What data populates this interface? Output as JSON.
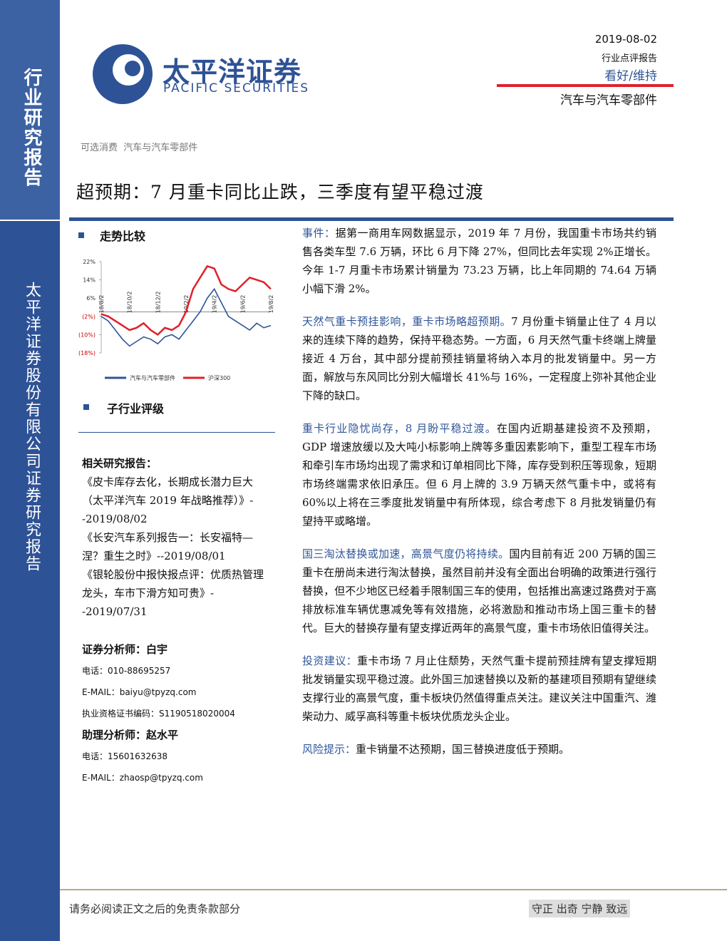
{
  "header": {
    "company": "太平洋证券",
    "company_en": "PACIFIC SECURITIES",
    "date": "2019-08-02",
    "report_type": "行业点评报告",
    "rating": "看好/维持",
    "industry": "汽车与汽车零部件"
  },
  "sidebar": {
    "top": "行业研究报告",
    "bottom": "太平洋证券股份有限公司证券研究报告"
  },
  "breadcrumb": [
    "可选消费",
    "汽车与汽车零部件"
  ],
  "title": "超预期：7 月重卡同比止跌，三季度有望平稳过渡",
  "sections": {
    "trend": "走势比较",
    "sub_rating": "子行业评级"
  },
  "chart": {
    "type": "line",
    "categories": [
      "18/8/2",
      null,
      null,
      null,
      "18/10/2",
      null,
      null,
      null,
      "18/12/2",
      null,
      null,
      null,
      "19/2/2",
      null,
      null,
      null,
      "19/4/2",
      null,
      null,
      null,
      "19/6/2",
      null,
      null,
      null,
      "19/8/2"
    ],
    "series": [
      {
        "name": "汽车与汽车零部件",
        "color": "#2f5597",
        "values": [
          -2,
          -4,
          -8,
          -12,
          -15,
          -13,
          -11,
          -12,
          -14,
          -11,
          -10,
          -12,
          -8,
          -4,
          0,
          6,
          10,
          4,
          -2,
          -4,
          -6,
          -8,
          -5,
          -7,
          -6
        ]
      },
      {
        "name": "沪深300",
        "color": "#e0202a",
        "values": [
          -1,
          -2,
          -4,
          -6,
          -8,
          -7,
          -5,
          -8,
          -10,
          -7,
          -8,
          -6,
          0,
          10,
          15,
          20,
          19,
          12,
          10,
          9,
          12,
          15,
          14,
          13,
          10
        ]
      }
    ],
    "ylim": [
      -18,
      22
    ],
    "yticks": [
      {
        "value": 22,
        "label": "22%"
      },
      {
        "value": 14,
        "label": "14%"
      },
      {
        "value": 6,
        "label": "6%"
      },
      {
        "value": -2,
        "label": "(2%)"
      },
      {
        "value": -10,
        "label": "(10%)"
      },
      {
        "value": -18,
        "label": "(18%)"
      }
    ]
  },
  "related": {
    "heading": "相关研究报告：",
    "items": [
      "《皮卡库存去化，长期成长潜力巨大（太平洋汽车 2019 年战略推荐）》--2019/08/02",
      "《长安汽车系列报告一：长安福特—涅？重生之时》--2019/08/01",
      "《银轮股份中报快报点评：优质热管理龙头，车市下滑方知可贵》--2019/07/31"
    ]
  },
  "analysts": [
    "证券分析师：白宇",
    "电话：010-88695257",
    "E-MAIL：baiyu@tpyzq.com",
    "执业资格证书编码：S1190518020004",
    "助理分析师：赵水平",
    "电话：15601632638",
    "E-MAIL：zhaosp@tpyzq.com"
  ],
  "paragraphs": [
    {
      "lead": "事件：",
      "text": "据第一商用车网数据显示，2019 年 7 月份，我国重卡市场共约销售各类车型 7.6 万辆，环比 6 月下降 27%，但同比去年实现 2%正增长。今年 1-7 月重卡市场累计销量为 73.23 万辆，比上年同期的 74.64 万辆小幅下滑 2%。"
    },
    {
      "lead": "天然气重卡预挂影响，重卡市场略超预期。",
      "text": "7 月份重卡销量止住了 4 月以来的连续下降的趋势，保持平稳态势。一方面，6 月天然气重卡终端上牌量接近 4 万台，其中部分提前预挂销量将纳入本月的批发销量中。另一方面，解放与东风同比分别大幅增长 41%与 16%，一定程度上弥补其他企业下降的缺口。"
    },
    {
      "lead": "重卡行业隐忧尚存，8 月盼平稳过渡。",
      "text": "在国内近期基建投资不及预期，GDP 增速放缓以及大吨小标影响上牌等多重因素影响下，重型工程车市场和牵引车市场均出现了需求和订单相同比下降，库存受到积压等现象，短期市场终端需求依旧承压。但 6 月上牌的 3.9 万辆天然气重卡中，或将有 60%以上将在三季度批发销量中有所体现，综合考虑下 8 月批发销量仍有望持平或略增。"
    },
    {
      "lead": "国三淘汰替换或加速，高景气度仍将持续。",
      "text": "国内目前有近 200 万辆的国三重卡在册尚未进行淘汰替换，虽然目前并没有全面出台明确的政策进行强行替换，但不少地区已经着手限制国三车的使用，包括推出高速过路费对于高排放标准车辆优惠减免等有效措施，必将激励和推动市场上国三重卡的替代。巨大的替换存量有望支撑近两年的高景气度，重卡市场依旧值得关注。"
    },
    {
      "lead": "投资建议：",
      "text": "重卡市场 7 月止住颓势，天然气重卡提前预挂牌有望支撑短期批发销量实现平稳过渡。此外国三加速替换以及新的基建项目预期有望继续支撑行业的高景气度，重卡板块仍然值得重点关注。建议关注中国重汽、潍柴动力、威孚高科等重卡板块优质龙头企业。"
    },
    {
      "lead": "风险提示：",
      "text": "重卡销量不达预期，国三替换进度低于预期。"
    }
  ],
  "footer": {
    "disclaimer": "请务必阅读正文之后的免责条款部分",
    "motto": "守正 出奇 宁静 致远"
  }
}
